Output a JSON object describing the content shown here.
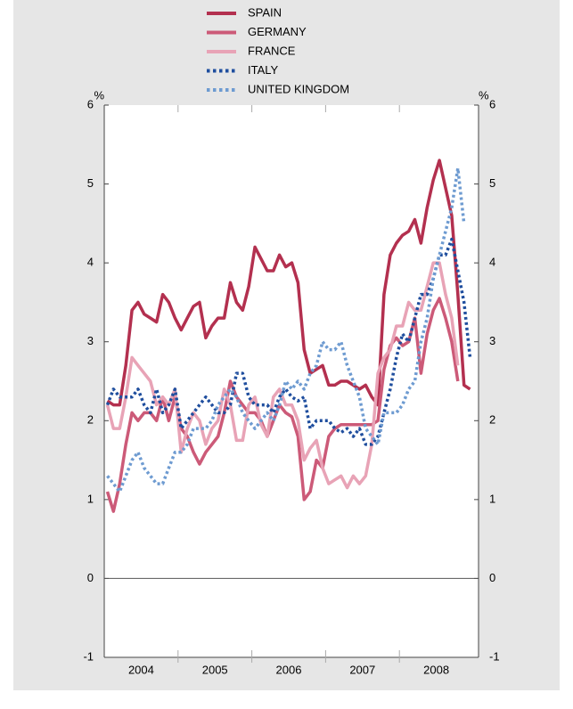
{
  "chart_data": {
    "type": "line",
    "ylabel": "%",
    "y2label": "%",
    "categories": [
      null,
      null,
      null,
      null,
      null,
      null,
      "2004",
      null,
      null,
      null,
      null,
      null,
      null,
      null,
      null,
      null,
      null,
      null,
      "2005",
      null,
      null,
      null,
      null,
      null,
      null,
      null,
      null,
      null,
      null,
      null,
      "2006",
      null,
      null,
      null,
      null,
      null,
      null,
      null,
      null,
      null,
      null,
      null,
      "2007",
      null,
      null,
      null,
      null,
      null,
      null,
      null,
      null,
      null,
      null,
      null,
      "2008",
      null,
      null,
      null,
      null,
      null
    ],
    "series": [
      {
        "name": "SPAIN",
        "color": "#b3304f",
        "style": "solid",
        "values": [
          2.25,
          2.2,
          2.2,
          2.7,
          3.4,
          3.5,
          3.35,
          3.3,
          3.25,
          3.6,
          3.5,
          3.3,
          3.15,
          3.3,
          3.45,
          3.5,
          3.05,
          3.2,
          3.3,
          3.3,
          3.75,
          3.5,
          3.4,
          3.7,
          4.2,
          4.05,
          3.9,
          3.9,
          4.1,
          3.95,
          4.0,
          3.75,
          2.9,
          2.6,
          2.65,
          2.7,
          2.45,
          2.45,
          2.5,
          2.5,
          2.45,
          2.4,
          2.45,
          2.3,
          2.2,
          3.6,
          4.1,
          4.25,
          4.35,
          4.4,
          4.55,
          4.25,
          4.7,
          5.05,
          5.3,
          4.95,
          4.6,
          3.6,
          2.45,
          2.4
        ]
      },
      {
        "name": "GERMANY",
        "color": "#cc5a78",
        "style": "solid",
        "values": [
          1.1,
          0.85,
          1.2,
          1.7,
          2.1,
          2.0,
          2.1,
          2.1,
          2.0,
          2.3,
          2.0,
          2.3,
          1.9,
          1.8,
          1.6,
          1.45,
          1.6,
          1.7,
          1.8,
          2.1,
          2.5,
          2.3,
          2.2,
          2.1,
          2.1,
          2.0,
          1.8,
          2.0,
          2.2,
          2.1,
          2.05,
          1.8,
          1.0,
          1.1,
          1.5,
          1.4,
          1.8,
          1.9,
          1.95,
          1.95,
          1.95,
          1.95,
          1.95,
          1.95,
          2.0,
          2.65,
          2.95,
          3.05,
          2.95,
          3.0,
          3.3,
          2.6,
          3.1,
          3.4,
          3.55,
          3.3,
          3.0,
          2.5,
          null,
          null
        ]
      },
      {
        "name": "FRANCE",
        "color": "#e8a3b6",
        "style": "solid",
        "values": [
          2.2,
          1.9,
          1.9,
          2.3,
          2.8,
          2.7,
          2.6,
          2.5,
          2.2,
          2.3,
          2.2,
          2.4,
          1.6,
          1.9,
          2.1,
          2.0,
          1.7,
          1.9,
          2.0,
          2.4,
          2.2,
          1.75,
          1.75,
          2.2,
          2.3,
          1.95,
          1.8,
          2.3,
          2.4,
          2.2,
          2.2,
          2.0,
          1.5,
          1.65,
          1.75,
          1.4,
          1.2,
          1.25,
          1.3,
          1.15,
          1.3,
          1.2,
          1.3,
          1.7,
          2.6,
          2.8,
          2.9,
          3.2,
          3.2,
          3.5,
          3.4,
          3.4,
          3.7,
          4.0,
          4.0,
          3.6,
          3.3,
          2.7,
          null,
          null
        ]
      },
      {
        "name": "ITALY",
        "color": "#1f4e9e",
        "style": "dotted",
        "values": [
          2.2,
          2.4,
          2.3,
          2.3,
          2.3,
          2.4,
          2.2,
          2.1,
          2.4,
          2.1,
          2.2,
          2.4,
          1.9,
          2.0,
          2.1,
          2.2,
          2.3,
          2.2,
          2.1,
          2.1,
          2.2,
          2.6,
          2.6,
          2.3,
          2.2,
          2.2,
          2.2,
          2.1,
          2.3,
          2.4,
          2.3,
          2.25,
          2.3,
          1.9,
          2.0,
          2.0,
          2.0,
          1.9,
          1.85,
          1.9,
          1.8,
          1.9,
          1.7,
          1.7,
          1.8,
          2.1,
          2.4,
          2.8,
          3.1,
          3.0,
          3.3,
          3.6,
          3.6,
          3.8,
          4.1,
          4.1,
          4.3,
          3.9,
          3.5,
          2.8
        ]
      },
      {
        "name": "UNITED KINGDOM",
        "color": "#6e9bd1",
        "style": "dotted",
        "values": [
          1.3,
          1.2,
          1.1,
          1.3,
          1.5,
          1.6,
          1.4,
          1.3,
          1.2,
          1.2,
          1.4,
          1.6,
          1.6,
          1.7,
          1.9,
          1.9,
          1.9,
          2.0,
          2.2,
          2.3,
          2.4,
          2.3,
          2.1,
          2.0,
          1.9,
          2.0,
          2.1,
          2.0,
          2.2,
          2.5,
          2.4,
          2.5,
          2.4,
          2.6,
          2.7,
          3.0,
          2.9,
          2.9,
          3.0,
          2.7,
          2.5,
          2.3,
          1.9,
          1.8,
          1.7,
          2.1,
          2.1,
          2.1,
          2.2,
          2.4,
          2.5,
          3.0,
          3.3,
          3.8,
          4.1,
          4.4,
          4.7,
          5.2,
          4.5,
          null
        ]
      }
    ],
    "ylim": [
      -1,
      6
    ],
    "yticks": [
      -1,
      0,
      1,
      2,
      3,
      4,
      5,
      6
    ],
    "y2lim": [
      -1,
      6
    ],
    "y2ticks": [
      -1,
      0,
      1,
      2,
      3,
      4,
      5,
      6
    ]
  }
}
